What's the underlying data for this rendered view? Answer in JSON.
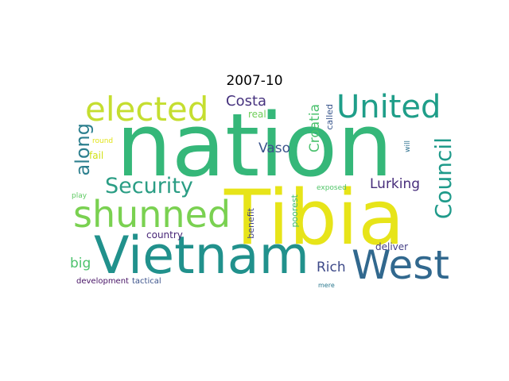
{
  "title": "2007-10",
  "words": [
    {
      "text": "nation",
      "color": "#35b779"
    },
    {
      "text": "Tibia",
      "color": "#e7e419"
    },
    {
      "text": "Vietnam",
      "color": "#21918c"
    },
    {
      "text": "West",
      "color": "#31688e"
    },
    {
      "text": "shunned",
      "color": "#7ad151"
    },
    {
      "text": "elected",
      "color": "#c5de30"
    },
    {
      "text": "United",
      "color": "#1f9e89"
    },
    {
      "text": "Security",
      "color": "#2a9d84"
    },
    {
      "text": "Council",
      "color": "#1f9a8a"
    },
    {
      "text": "along",
      "color": "#2c7f8e"
    },
    {
      "text": "Costa",
      "color": "#46327e"
    },
    {
      "text": "Vaso",
      "color": "#3a538b"
    },
    {
      "text": "Croatia",
      "color": "#4ac16d"
    },
    {
      "text": "Lurking",
      "color": "#472d7b"
    },
    {
      "text": "Rich",
      "color": "#3e4a89"
    },
    {
      "text": "big",
      "color": "#4cc26c"
    },
    {
      "text": "country",
      "color": "#482677"
    },
    {
      "text": "deliver",
      "color": "#433e85"
    },
    {
      "text": "development",
      "color": "#471365"
    },
    {
      "text": "tactical",
      "color": "#3b528b"
    },
    {
      "text": "real",
      "color": "#6ece58"
    },
    {
      "text": "called",
      "color": "#39568c"
    },
    {
      "text": "fail",
      "color": "#d2e21b"
    },
    {
      "text": "round",
      "color": "#e2e418"
    },
    {
      "text": "play",
      "color": "#5ec962"
    },
    {
      "text": "exposed",
      "color": "#52c569"
    },
    {
      "text": "poorest",
      "color": "#3ebc74"
    },
    {
      "text": "benefit",
      "color": "#414487"
    },
    {
      "text": "mere",
      "color": "#2a788e"
    },
    {
      "text": "will",
      "color": "#2d708e"
    }
  ]
}
